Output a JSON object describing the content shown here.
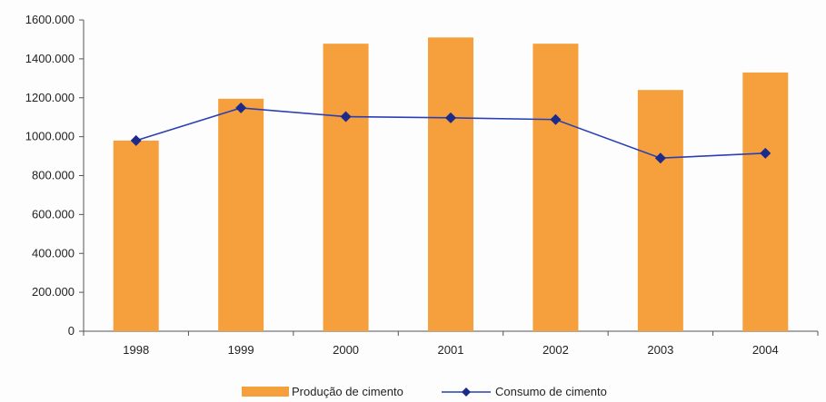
{
  "chart_data": {
    "type": "bar",
    "categories": [
      "1998",
      "1999",
      "2000",
      "2001",
      "2002",
      "2003",
      "2004"
    ],
    "series": [
      {
        "name": "Produção de cimento",
        "kind": "bar",
        "color": "#f5a03c",
        "values": [
          980,
          1195,
          1478,
          1510,
          1478,
          1240,
          1330
        ]
      },
      {
        "name": "Consumo de cimento",
        "kind": "line",
        "color": "#2a3fb5",
        "marker_color": "#1c2a8c",
        "values": [
          980,
          1148,
          1103,
          1097,
          1088,
          890,
          915
        ]
      }
    ],
    "ylim": [
      0,
      1600
    ],
    "yticks": [
      0,
      200,
      400,
      600,
      800,
      1000,
      1200,
      1400,
      1600
    ],
    "ytick_labels": [
      "0",
      "200.000",
      "400.000",
      "600.000",
      "800.000",
      "1000.000",
      "1200.000",
      "1400.000",
      "1600.000"
    ],
    "legend_position": "bottom-center",
    "grid": false,
    "title": "",
    "xlabel": "",
    "ylabel": ""
  }
}
